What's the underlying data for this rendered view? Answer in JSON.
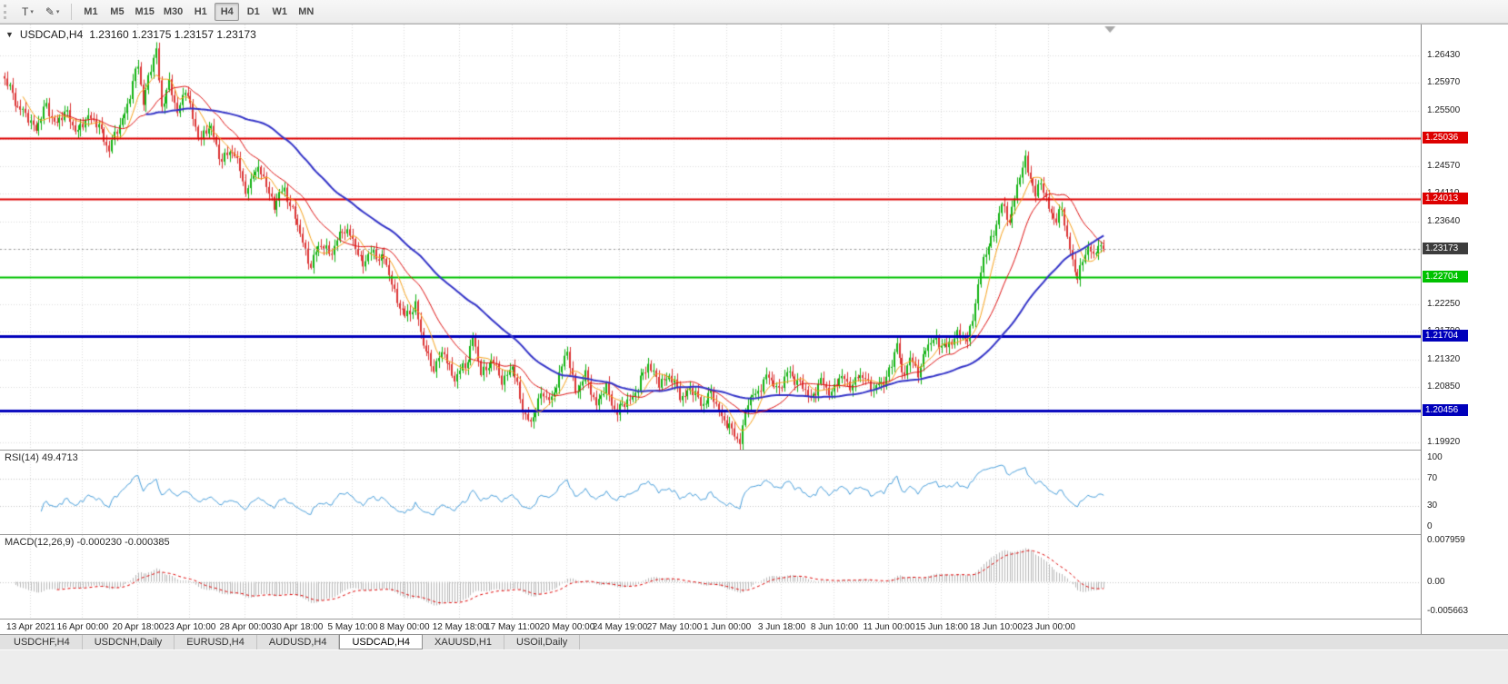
{
  "toolbar": {
    "templates_button": {
      "glyph": "T",
      "caret": "▾"
    },
    "line_studies_button": {
      "glyph": "✎",
      "caret": "▾"
    },
    "timeframes": [
      "M1",
      "M5",
      "M15",
      "M30",
      "H1",
      "H4",
      "D1",
      "W1",
      "MN"
    ],
    "active_timeframe": "H4"
  },
  "chart_header": {
    "menu_icon": "▼",
    "symbol": "USDCAD,H4",
    "quote": "1.23160 1.23175 1.23157 1.23173"
  },
  "chart_data": {
    "type": "candlestick",
    "title": "USDCAD,H4",
    "symbol": "USDCAD",
    "timeframe": "H4",
    "current_bar": {
      "open": "1.23160",
      "high": "1.23175",
      "low": "1.23157",
      "close": "1.23173"
    },
    "ylim": [
      1.198,
      1.2695
    ],
    "bars": 421,
    "price_ticks": [
      "1.26430",
      "1.25970",
      "1.25500",
      "1.24570",
      "1.24110",
      "1.23640",
      "1.22250",
      "1.21790",
      "1.21320",
      "1.20850",
      "1.19920"
    ],
    "grid_prices": [
      1.2643,
      1.2597,
      1.255,
      1.2503,
      1.2457,
      1.2411,
      1.2364,
      1.2318,
      1.2271,
      1.2225,
      1.2179,
      1.2132,
      1.2085,
      1.2039,
      1.1992
    ],
    "horizontal_lines": [
      {
        "price": 1.25036,
        "label": "1.25036",
        "color": "#dd0000",
        "width": 2
      },
      {
        "price": 1.24013,
        "label": "1.24013",
        "color": "#dd0000",
        "width": 2
      },
      {
        "price": 1.22704,
        "label": "1.22704",
        "color": "#00c200",
        "width": 2
      },
      {
        "price": 1.21704,
        "label": "1.21704",
        "color": "#0000bb",
        "width": 3
      },
      {
        "price": 1.20456,
        "label": "1.20456",
        "color": "#0000bb",
        "width": 3
      }
    ],
    "bid_line": {
      "price": 1.23173,
      "label": "1.23173",
      "box_color": "#3c3c3c"
    },
    "candle_colors": {
      "up": "#12b212",
      "down": "#dc3434"
    },
    "moving_averages": [
      {
        "period": 8,
        "color": "#f7a21b",
        "width": 1
      },
      {
        "period": 21,
        "color": "#e01414",
        "width": 1
      },
      {
        "period": 55,
        "color": "#3434c8",
        "width": 2
      }
    ],
    "close_path_anchors": [
      [
        0,
        1.2602
      ],
      [
        4,
        1.2568
      ],
      [
        8,
        1.254
      ],
      [
        12,
        1.2522
      ],
      [
        16,
        1.2556
      ],
      [
        20,
        1.2528
      ],
      [
        24,
        1.2548
      ],
      [
        28,
        1.251
      ],
      [
        32,
        1.2545
      ],
      [
        36,
        1.252
      ],
      [
        40,
        1.2488
      ],
      [
        44,
        1.2524
      ],
      [
        48,
        1.2576
      ],
      [
        51,
        1.2628
      ],
      [
        53,
        1.2566
      ],
      [
        55,
        1.2604
      ],
      [
        58,
        1.265
      ],
      [
        60,
        1.256
      ],
      [
        63,
        1.2592
      ],
      [
        66,
        1.255
      ],
      [
        69,
        1.2586
      ],
      [
        72,
        1.2538
      ],
      [
        75,
        1.2502
      ],
      [
        79,
        1.2524
      ],
      [
        83,
        1.2462
      ],
      [
        87,
        1.2488
      ],
      [
        90,
        1.2452
      ],
      [
        92,
        1.2405
      ],
      [
        95,
        1.2452
      ],
      [
        99,
        1.2438
      ],
      [
        103,
        1.239
      ],
      [
        107,
        1.242
      ],
      [
        111,
        1.2368
      ],
      [
        114,
        1.233
      ],
      [
        117,
        1.2288
      ],
      [
        121,
        1.233
      ],
      [
        125,
        1.2306
      ],
      [
        129,
        1.2356
      ],
      [
        133,
        1.233
      ],
      [
        137,
        1.2294
      ],
      [
        141,
        1.2312
      ],
      [
        145,
        1.23
      ],
      [
        149,
        1.2246
      ],
      [
        153,
        1.22
      ],
      [
        157,
        1.2226
      ],
      [
        160,
        1.2152
      ],
      [
        164,
        1.212
      ],
      [
        168,
        1.2142
      ],
      [
        172,
        1.2098
      ],
      [
        176,
        1.2122
      ],
      [
        179,
        1.2168
      ],
      [
        182,
        1.2108
      ],
      [
        186,
        1.213
      ],
      [
        190,
        1.2098
      ],
      [
        194,
        1.2118
      ],
      [
        198,
        1.2052
      ],
      [
        201,
        1.2018
      ],
      [
        205,
        1.2078
      ],
      [
        209,
        1.2058
      ],
      [
        212,
        1.2112
      ],
      [
        215,
        1.2142
      ],
      [
        218,
        1.2078
      ],
      [
        222,
        1.2102
      ],
      [
        226,
        1.2058
      ],
      [
        230,
        1.2082
      ],
      [
        234,
        1.2042
      ],
      [
        238,
        1.2062
      ],
      [
        242,
        1.2082
      ],
      [
        246,
        1.2128
      ],
      [
        250,
        1.2088
      ],
      [
        254,
        1.2108
      ],
      [
        258,
        1.2068
      ],
      [
        262,
        1.2082
      ],
      [
        266,
        1.2058
      ],
      [
        270,
        1.2072
      ],
      [
        274,
        1.2038
      ],
      [
        278,
        1.2008
      ],
      [
        281,
        1.1998
      ],
      [
        284,
        1.2058
      ],
      [
        288,
        1.2082
      ],
      [
        292,
        1.2102
      ],
      [
        296,
        1.2082
      ],
      [
        300,
        1.2112
      ],
      [
        304,
        1.2088
      ],
      [
        308,
        1.2068
      ],
      [
        312,
        1.2092
      ],
      [
        316,
        1.2078
      ],
      [
        320,
        1.2102
      ],
      [
        324,
        1.2088
      ],
      [
        328,
        1.2108
      ],
      [
        332,
        1.2078
      ],
      [
        336,
        1.2098
      ],
      [
        339,
        1.2118
      ],
      [
        341,
        1.2162
      ],
      [
        343,
        1.2108
      ],
      [
        346,
        1.2128
      ],
      [
        349,
        1.2112
      ],
      [
        352,
        1.2148
      ],
      [
        356,
        1.2168
      ],
      [
        360,
        1.2148
      ],
      [
        364,
        1.2178
      ],
      [
        368,
        1.2158
      ],
      [
        371,
        1.2232
      ],
      [
        374,
        1.2298
      ],
      [
        378,
        1.2348
      ],
      [
        381,
        1.2388
      ],
      [
        384,
        1.2368
      ],
      [
        387,
        1.2422
      ],
      [
        390,
        1.2468
      ],
      [
        392,
        1.2442
      ],
      [
        394,
        1.2402
      ],
      [
        396,
        1.2432
      ],
      [
        398,
        1.2402
      ],
      [
        400,
        1.2378
      ],
      [
        402,
        1.2358
      ],
      [
        404,
        1.2392
      ],
      [
        406,
        1.2338
      ],
      [
        408,
        1.2292
      ],
      [
        410,
        1.2268
      ],
      [
        412,
        1.2302
      ],
      [
        414,
        1.2322
      ],
      [
        416,
        1.2298
      ],
      [
        418,
        1.233
      ],
      [
        420,
        1.23173
      ]
    ],
    "label_bars": [
      10,
      30,
      51,
      71,
      92,
      112,
      133,
      153,
      174,
      194,
      215,
      235,
      256,
      276,
      297,
      317,
      338,
      358,
      379,
      399
    ],
    "time_labels": [
      "13 Apr 2021",
      "16 Apr 00:00",
      "20 Apr 18:00",
      "23 Apr 10:00",
      "28 Apr 00:00",
      "30 Apr 18:00",
      "5 May 10:00",
      "8 May 00:00",
      "12 May 18:00",
      "17 May 11:00",
      "20 May 00:00",
      "24 May 19:00",
      "27 May 10:00",
      "1 Jun 00:00",
      "3 Jun 18:00",
      "8 Jun 10:00",
      "11 Jun 00:00",
      "15 Jun 18:00",
      "18 Jun 10:00",
      "23 Jun 00:00"
    ]
  },
  "indicators": {
    "rsi": {
      "label": "RSI(14) 49.4713",
      "period": 14,
      "value": "49.4713",
      "levels": [
        "100",
        "70",
        "30",
        "0"
      ],
      "line_color": "#4aa0dc"
    },
    "macd": {
      "label": "MACD(12,26,9) -0.000230 -0.000385",
      "fast": 12,
      "slow": 26,
      "signal": 9,
      "values": "-0.000230 -0.000385",
      "axis_labels": [
        "0.007959",
        "0.00",
        "-0.005663"
      ],
      "range": [
        -0.005663,
        0.007959
      ],
      "histogram_color": "#b8b8b8",
      "signal_color": "#e00000"
    }
  },
  "bottom_tabs": [
    {
      "label": "USDCHF,H4",
      "active": false
    },
    {
      "label": "USDCNH,Daily",
      "active": false
    },
    {
      "label": "EURUSD,H4",
      "active": false
    },
    {
      "label": "AUDUSD,H4",
      "active": false
    },
    {
      "label": "USDCAD,H4",
      "active": true
    },
    {
      "label": "XAUUSD,H1",
      "active": false
    },
    {
      "label": "USOil,Daily",
      "active": false
    }
  ]
}
